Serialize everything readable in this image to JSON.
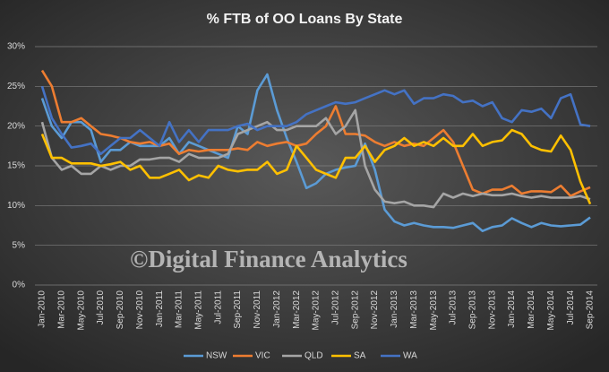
{
  "chart_data": {
    "type": "line",
    "title": "% FTB of OO Loans  By State",
    "watermark": "©Digital Finance Analytics",
    "categories": [
      "Jan-2010",
      null,
      "Mar-2010",
      null,
      "May-2010",
      null,
      "Jul-2010",
      null,
      "Sep-2010",
      null,
      "Nov-2010",
      null,
      "Jan-2011",
      null,
      "Mar-2011",
      null,
      "May-2011",
      null,
      "Jul-2011",
      null,
      "Sep-2011",
      null,
      "Nov-2011",
      null,
      "Jan-2012",
      null,
      "Mar-2012",
      null,
      "May-2012",
      null,
      "Jul-2012",
      null,
      "Sep-2012",
      null,
      "Nov-2012",
      null,
      "Jan-2013",
      null,
      "Mar-2013",
      null,
      "May-2013",
      null,
      "Jul-2013",
      null,
      "Sep-2013",
      null,
      "Nov-2013",
      null,
      "Jan-2014",
      null,
      "Mar-2014",
      null,
      "May-2014",
      null,
      "Jul-2014",
      null,
      "Sep-2014"
    ],
    "series": [
      {
        "name": "NSW",
        "color": "#5b9bd5",
        "values": [
          23.5,
          20,
          18.5,
          20.5,
          20.5,
          19.5,
          15.5,
          17,
          17,
          18,
          17.5,
          17.5,
          17.5,
          18.5,
          16.5,
          18,
          17.5,
          17,
          16.5,
          16,
          20,
          19,
          24.5,
          26.5,
          22,
          18.5,
          15.5,
          12.2,
          12.8,
          14,
          14.5,
          14.8,
          15,
          17.8,
          14.5,
          9.5,
          8,
          7.5,
          7.8,
          7.5,
          7.3,
          7.3,
          7.2,
          7.5,
          7.8,
          6.8,
          7.3,
          7.5,
          8.4,
          7.8,
          7.3,
          7.8,
          7.5,
          7.4,
          7.5,
          7.6,
          8.5
        ]
      },
      {
        "name": "VIC",
        "color": "#ed7d31",
        "values": [
          27,
          25,
          20.5,
          20.5,
          21,
          20,
          19,
          18.8,
          18.5,
          18,
          17.8,
          18,
          17.5,
          17.8,
          16.5,
          17,
          16.8,
          17,
          17,
          17,
          17.2,
          17,
          18,
          17.5,
          17.8,
          18,
          17.5,
          17.8,
          19,
          20,
          22.5,
          19,
          19,
          18.8,
          18,
          17.5,
          18,
          17.5,
          17.8,
          17.5,
          18.5,
          19.5,
          18,
          15,
          12,
          11.5,
          12,
          12,
          12.5,
          11.5,
          11.8,
          11.8,
          11.7,
          12.5,
          11.2,
          11.8,
          12.3
        ]
      },
      {
        "name": "QLD",
        "color": "#a5a5a5",
        "values": [
          20.5,
          16,
          14.5,
          15,
          14,
          14,
          15,
          14.5,
          15,
          15,
          15.8,
          15.8,
          16,
          16,
          15.5,
          16.5,
          16,
          16,
          16,
          16.5,
          19,
          19.5,
          20,
          20.5,
          19.5,
          19.5,
          20,
          20,
          20,
          21,
          19,
          20,
          22,
          15,
          12,
          10.5,
          10.3,
          10.5,
          10,
          10,
          9.8,
          11.5,
          11,
          11.5,
          11.2,
          11.5,
          11.3,
          11.3,
          11.5,
          11.2,
          11,
          11.2,
          11,
          11,
          11,
          11.2,
          10.8
        ]
      },
      {
        "name": "SA",
        "color": "#ffc000",
        "values": [
          19,
          16,
          16,
          15.3,
          15.3,
          15.3,
          15,
          15.2,
          15.5,
          14.5,
          15,
          13.5,
          13.5,
          14,
          14.5,
          13.2,
          13.8,
          13.5,
          15,
          14.5,
          14.3,
          14.5,
          14.5,
          15.5,
          14,
          14.5,
          17.5,
          16,
          14.5,
          14,
          13.5,
          16,
          16,
          17.5,
          15.5,
          17,
          17.5,
          18.5,
          17.5,
          18,
          17.5,
          18.5,
          17.5,
          17.5,
          19,
          17.5,
          18,
          18.2,
          19.5,
          19,
          17.5,
          17,
          16.8,
          18.8,
          17,
          13,
          10.2
        ]
      },
      {
        "name": "WA",
        "color": "#4472c4",
        "values": [
          25,
          21,
          19,
          17.3,
          17.5,
          17.8,
          16.5,
          17.5,
          18.5,
          18.5,
          19.5,
          18.5,
          17.5,
          20.5,
          18,
          19.5,
          18,
          19.5,
          19.5,
          19.5,
          20,
          20.3,
          19.5,
          20,
          20,
          20,
          20.5,
          21.5,
          22,
          22.5,
          23,
          22.8,
          23,
          23.5,
          24,
          24.5,
          24,
          24.5,
          22.8,
          23.5,
          23.5,
          24,
          23.8,
          23,
          23.2,
          22.5,
          23,
          21,
          20.5,
          22,
          21.8,
          22.2,
          21,
          23.5,
          24,
          20.2,
          20
        ]
      }
    ],
    "ylim": [
      0,
      30
    ],
    "yticks": [
      {
        "value": 0,
        "label": "0%"
      },
      {
        "value": 5,
        "label": "5%"
      },
      {
        "value": 10,
        "label": "10%"
      },
      {
        "value": 15,
        "label": "15%"
      },
      {
        "value": 20,
        "label": "20%"
      },
      {
        "value": 25,
        "label": "25%"
      },
      {
        "value": 30,
        "label": "30%"
      }
    ],
    "grid": true,
    "legend": "bottom"
  }
}
